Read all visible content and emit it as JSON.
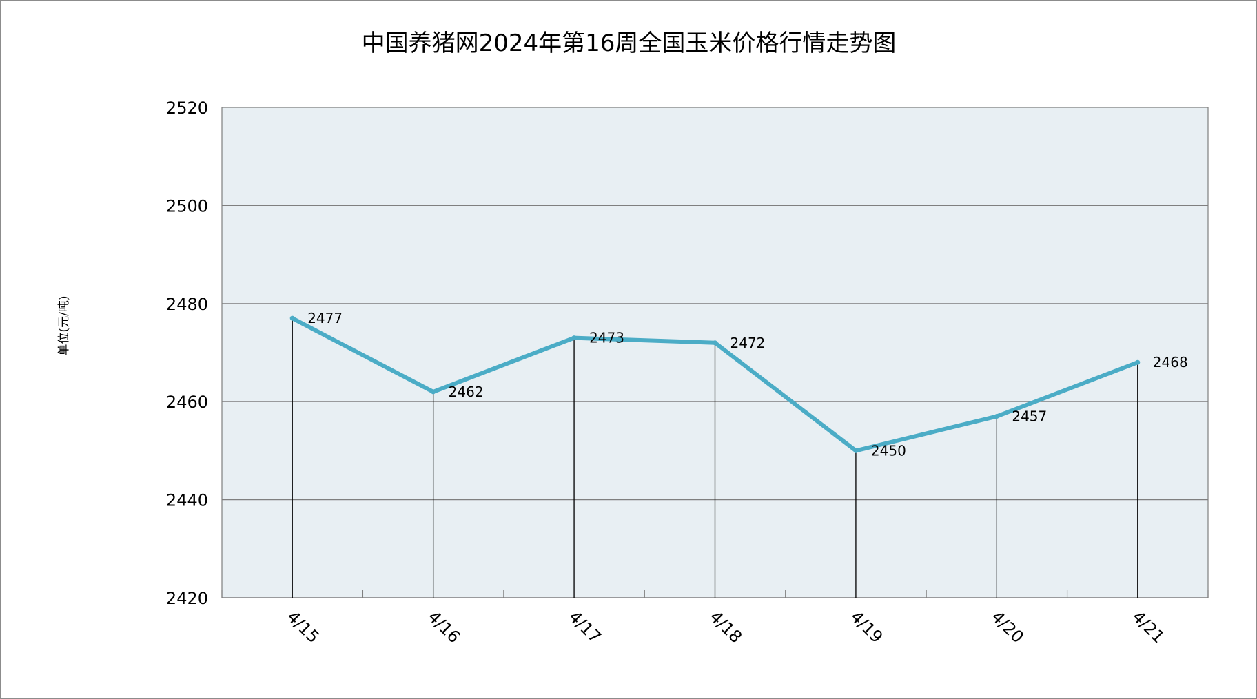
{
  "chart_data": {
    "type": "line",
    "title": "中国养猪网2024年第16周全国玉米价格行情走势图",
    "ylabel": "单位(元/吨)",
    "xlabel": "",
    "categories": [
      "4/15",
      "4/16",
      "4/17",
      "4/18",
      "4/19",
      "4/20",
      "4/21"
    ],
    "series": [
      {
        "values": [
          2477,
          2462,
          2473,
          2472,
          2450,
          2457,
          2468
        ],
        "color": "#4bacc6"
      }
    ],
    "data_labels": [
      "2477",
      "2462",
      "2473",
      "2472",
      "2450",
      "2457",
      "2468"
    ],
    "ylim": [
      2420,
      2520
    ],
    "yticks": [
      2420,
      2440,
      2460,
      2480,
      2500,
      2520
    ],
    "ytick_labels": [
      "2420",
      "2440",
      "2460",
      "2480",
      "2500",
      "2520"
    ],
    "grid": true,
    "drop_lines": true,
    "legend": "none",
    "colors": {
      "plot_background": "#e8eff3",
      "gridline": "#7f7f7f",
      "axis": "#7f7f7f",
      "drop_line": "#000000",
      "series_line": "#4bacc6"
    }
  }
}
